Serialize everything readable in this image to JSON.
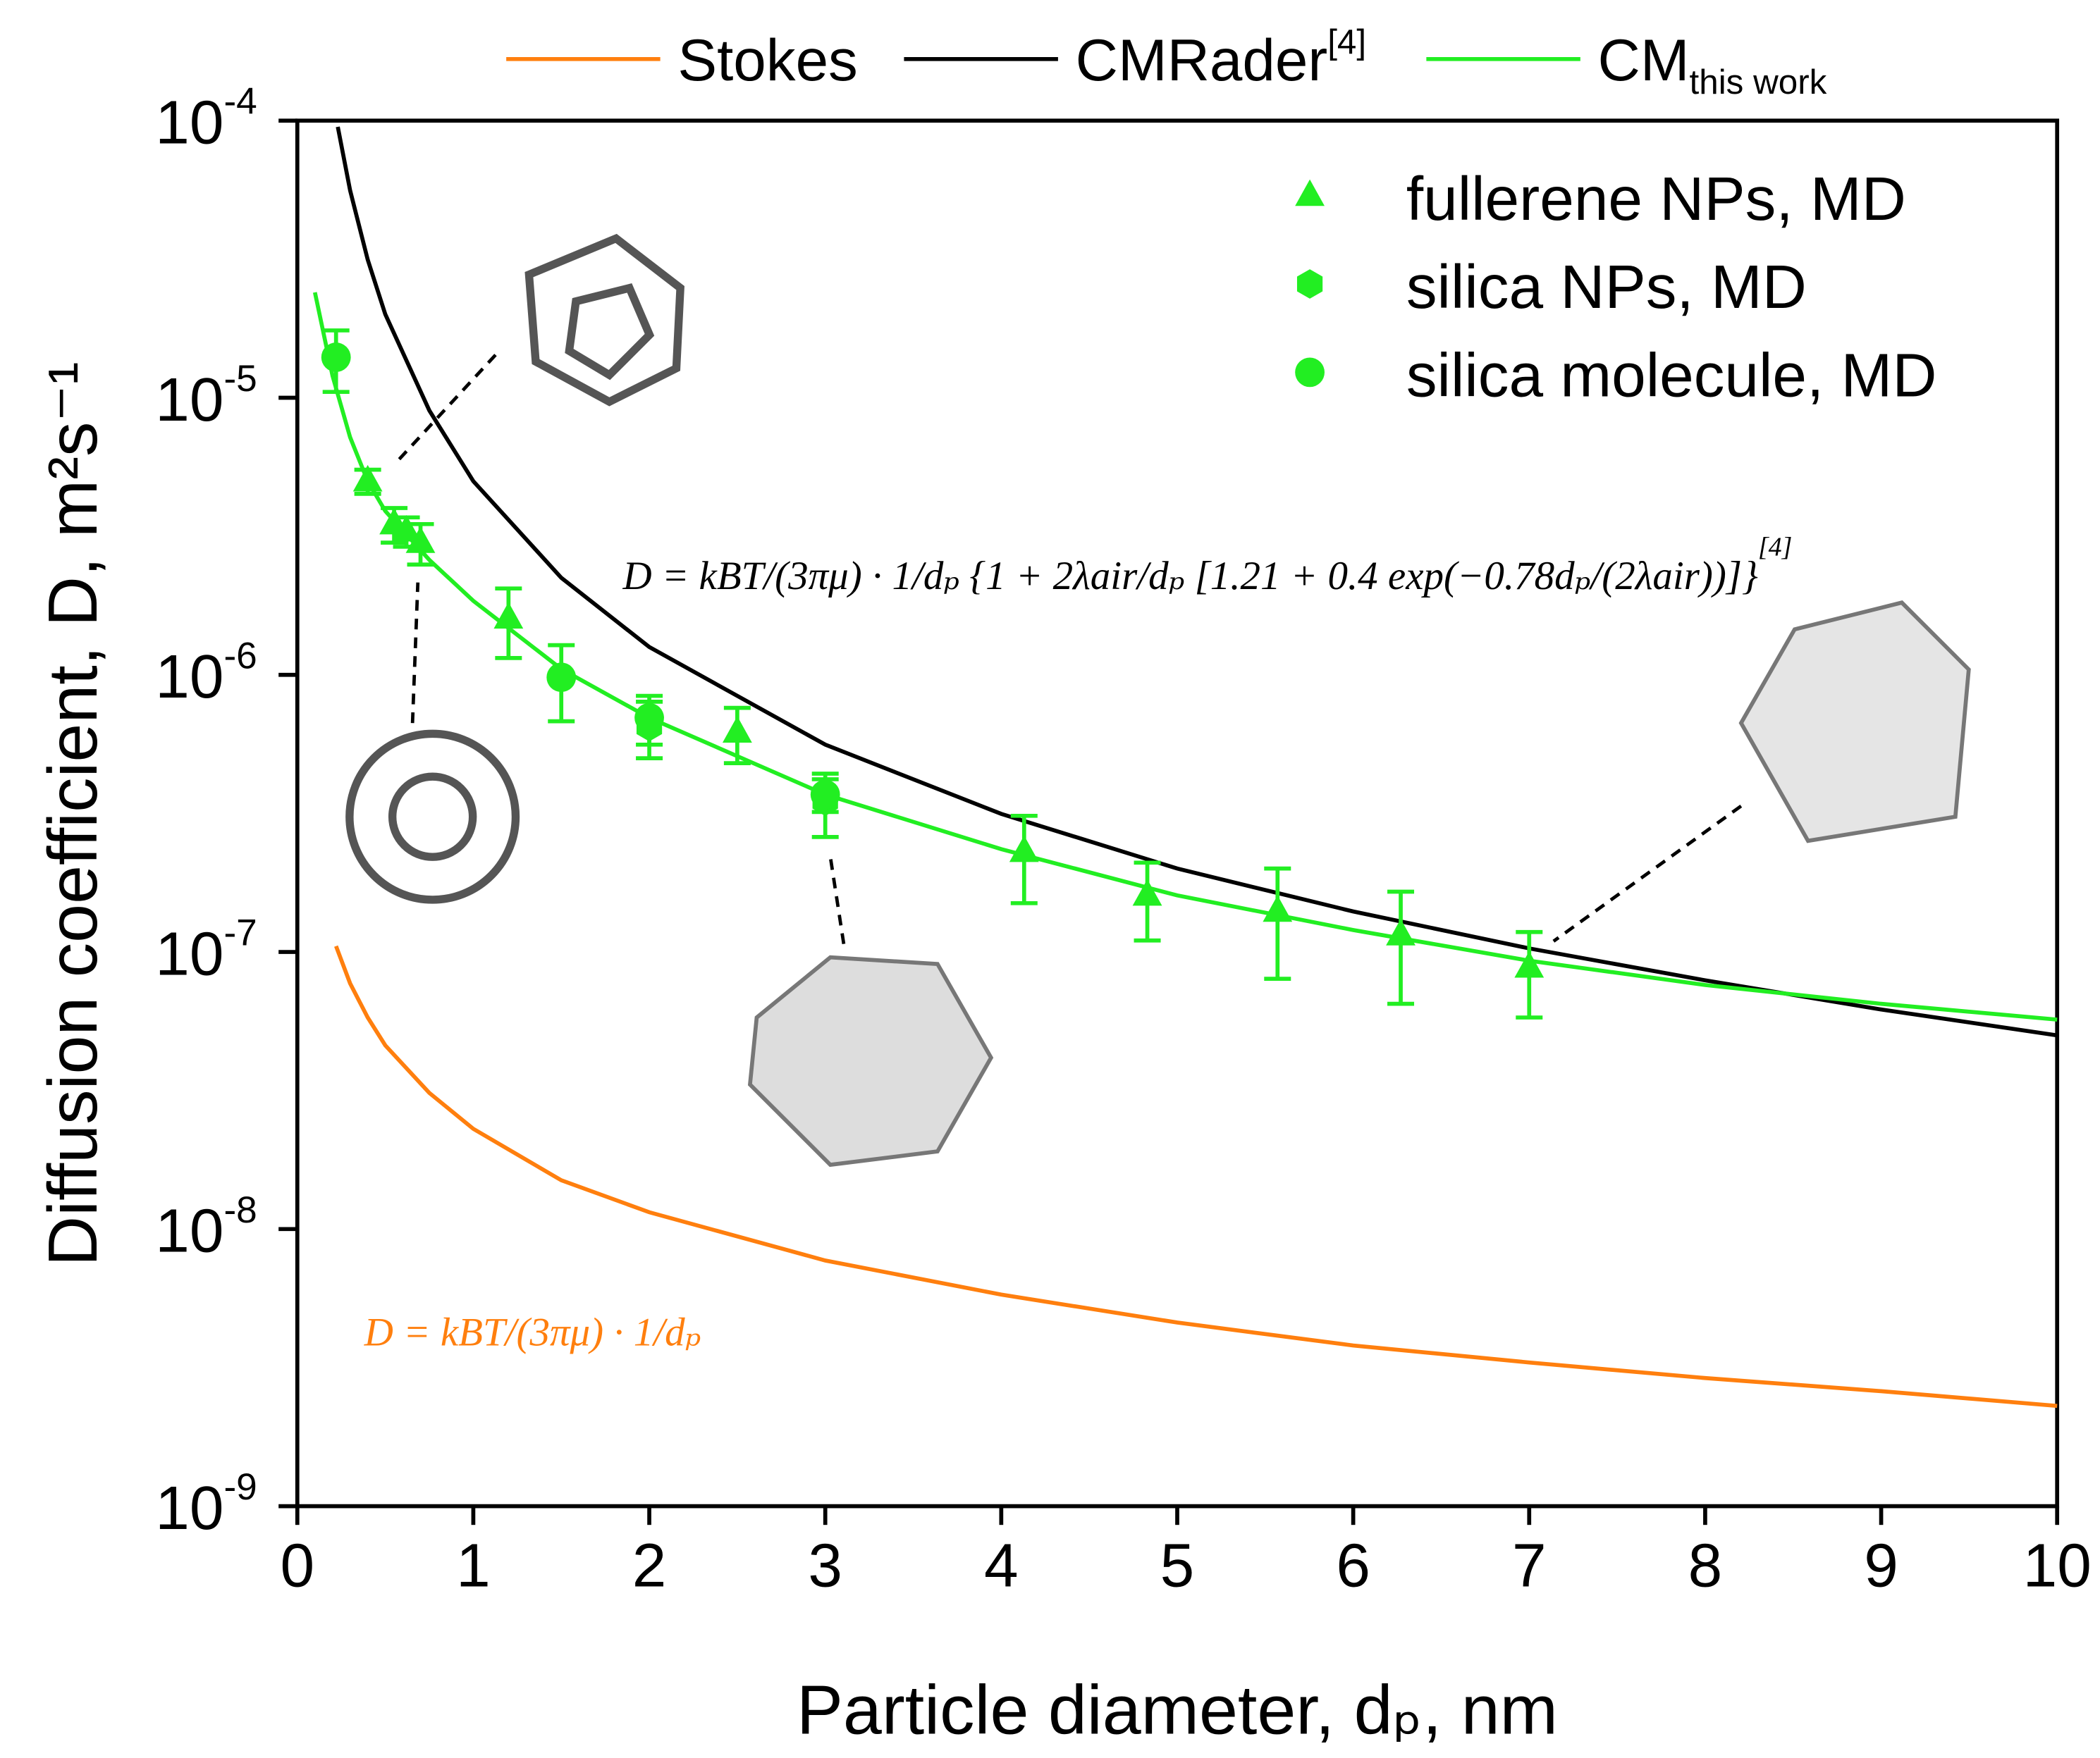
{
  "chart_data": {
    "type": "line",
    "x_label": "Particle diameter, dₚ, nm",
    "y_label": "Diffusion coefficient, D, m²s⁻¹",
    "xlim": [
      0,
      10
    ],
    "xticks": [
      0,
      1,
      2,
      3,
      4,
      5,
      6,
      7,
      8,
      9,
      10
    ],
    "ylim": [
      1e-09,
      0.0001
    ],
    "y_log_scale": true,
    "yticks": [
      {
        "value": 1e-09,
        "label": "10",
        "exponent": "-9"
      },
      {
        "value": 1e-08,
        "label": "10",
        "exponent": "-8"
      },
      {
        "value": 1e-07,
        "label": "10",
        "exponent": "-7"
      },
      {
        "value": 1e-06,
        "label": "10",
        "exponent": "-6"
      },
      {
        "value": 1e-05,
        "label": "10",
        "exponent": "-5"
      },
      {
        "value": 0.0001,
        "label": "10",
        "exponent": "-4"
      }
    ],
    "series": [
      {
        "name": "Stokes",
        "color": "#ff7f0e",
        "x": [
          0.22,
          0.3,
          0.4,
          0.5,
          0.75,
          1,
          1.5,
          2,
          3,
          4,
          5,
          6,
          7,
          8,
          9,
          10
        ],
        "values": [
          1.05e-07,
          7.7e-08,
          5.8e-08,
          4.6e-08,
          3.1e-08,
          2.3e-08,
          1.5e-08,
          1.15e-08,
          7.7e-09,
          5.8e-09,
          4.6e-09,
          3.8e-09,
          3.3e-09,
          2.9e-09,
          2.6e-09,
          2.3e-09
        ]
      },
      {
        "name": "CMRader",
        "name_superscript": "[4]",
        "color": "#000000",
        "x": [
          0.23,
          0.3,
          0.4,
          0.5,
          0.75,
          1,
          1.5,
          2,
          3,
          4,
          5,
          6,
          7,
          8,
          9,
          10
        ],
        "values": [
          9.5e-05,
          5.6e-05,
          3.15e-05,
          2e-05,
          9e-06,
          5e-06,
          2.24e-06,
          1.26e-06,
          5.6e-07,
          3.15e-07,
          2e-07,
          1.4e-07,
          1.03e-07,
          7.9e-08,
          6.2e-08,
          5e-08
        ]
      },
      {
        "name": "CM",
        "name_subscript": "this work",
        "color": "#22ee22",
        "x": [
          0.1,
          0.2,
          0.3,
          0.4,
          0.5,
          0.75,
          1,
          1.5,
          2,
          3,
          4,
          5,
          6,
          7,
          8,
          9,
          10
        ],
        "values": [
          2.4e-05,
          1.2e-05,
          7.2e-06,
          5e-06,
          3.9e-06,
          2.6e-06,
          1.85e-06,
          1.05e-06,
          7e-07,
          3.7e-07,
          2.35e-07,
          1.6e-07,
          1.2e-07,
          9.3e-08,
          7.6e-08,
          6.5e-08,
          5.7e-08
        ]
      }
    ],
    "scatter_series": [
      {
        "name": "fullerene NPs, MD",
        "marker": "triangle",
        "color": "#22ee22",
        "x": [
          0.4,
          0.55,
          0.62,
          0.7,
          1.2,
          2.5,
          4.13,
          4.83,
          5.57,
          6.27,
          7
        ],
        "values": [
          5e-06,
          3.5e-06,
          3.3e-06,
          3e-06,
          1.6e-06,
          6.2e-07,
          2.3e-07,
          1.6e-07,
          1.4e-07,
          1.15e-07,
          8.8e-08
        ],
        "errors": [
          5e-07,
          5e-07,
          4e-07,
          5e-07,
          4.5e-07,
          1.4e-07,
          8e-08,
          5e-08,
          6e-08,
          5e-08,
          3e-08
        ]
      },
      {
        "name": "silica NPs, MD",
        "marker": "hexagon",
        "color": "#22ee22",
        "x": [
          2,
          3
        ],
        "values": [
          6.5e-07,
          3.5e-07
        ],
        "errors": [
          1.5e-07,
          9e-08
        ]
      },
      {
        "name": "silica molecule, MD",
        "marker": "circle",
        "color": "#22ee22",
        "x": [
          0.22,
          1.5,
          2,
          3
        ],
        "values": [
          1.4e-05,
          9.8e-07,
          7e-07,
          3.7e-07
        ],
        "errors": [
          3.5e-06,
          3e-07,
          1.4e-07,
          5e-08
        ]
      }
    ],
    "annotations": [
      {
        "text": "D = kBT/(3πμ) · 1/dₚ {1 + 2λair/dₚ [1.21 + 0.4 exp(−0.78dₚ/(2λair))]}",
        "superscript": "[4]",
        "color": "#000000"
      },
      {
        "text": "D = kBT/(3πμ) · 1/dₚ",
        "color": "#ff7f0e"
      }
    ]
  }
}
